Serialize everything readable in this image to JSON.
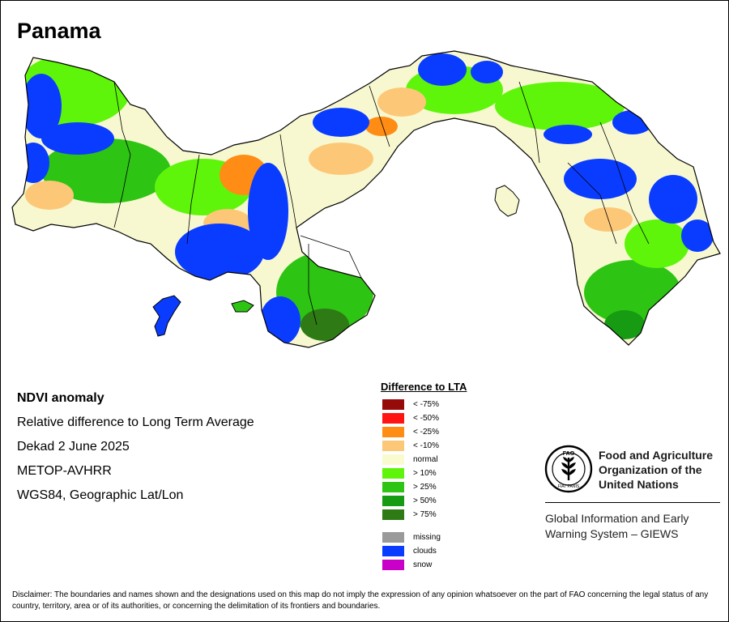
{
  "map": {
    "title": "Panama",
    "ndvi_colors": {
      "clouds": "#0a3cff",
      "gt10": "#5ef50a",
      "gt25": "#2ec414",
      "gt50": "#169b12",
      "gt75": "#2e7a14",
      "normal": "#f8f8d0",
      "lt10": "#fcc878",
      "lt25": "#ff8c14",
      "lt50": "#ff1414",
      "lt75": "#960a0a"
    }
  },
  "info": {
    "title": "NDVI anomaly",
    "subtitle": "Relative difference to Long Term Average",
    "period": "Dekad 2 June 2025",
    "sensor": "METOP-AVHRR",
    "projection": "WGS84, Geographic Lat/Lon"
  },
  "legend": {
    "title": "Difference to LTA",
    "items": [
      {
        "label": "< -75%",
        "color": "#960a0a"
      },
      {
        "label": "< -50%",
        "color": "#ff1414"
      },
      {
        "label": "< -25%",
        "color": "#ff8c14"
      },
      {
        "label": "< -10%",
        "color": "#fcc878"
      },
      {
        "label": "normal",
        "color": "#fafad0"
      },
      {
        "label": "> 10%",
        "color": "#5ef50a"
      },
      {
        "label": "> 25%",
        "color": "#2ec414"
      },
      {
        "label": "> 50%",
        "color": "#169b12"
      },
      {
        "label": "> 75%",
        "color": "#2e7a14"
      }
    ],
    "extra_items": [
      {
        "label": "missing",
        "color": "#9a9a9a"
      },
      {
        "label": "clouds",
        "color": "#0a3cff"
      },
      {
        "label": "snow",
        "color": "#c800c8"
      }
    ]
  },
  "organization": {
    "logo_text": "FAO",
    "logo_motto": "FIAT PANIS",
    "name_lines": [
      "Food and Agriculture",
      "Organization of the",
      "United Nations"
    ],
    "system_lines": [
      "Global Information and Early",
      "Warning System – GIEWS"
    ]
  },
  "disclaimer": "Disclaimer: The boundaries and names shown and the designations used on this map do not imply the expression of any opinion whatsoever on the part of FAO concerning the legal status of any country, territory, area or of its authorities, or concerning the delimitation of its frontiers and boundaries."
}
